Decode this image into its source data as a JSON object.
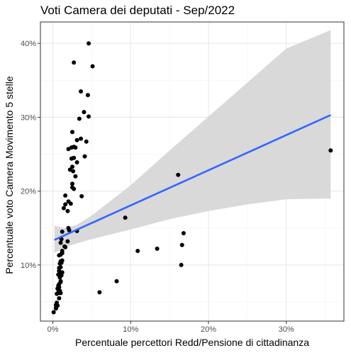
{
  "chart_data": {
    "type": "scatter",
    "title": "Voti Camera dei deputati - Sep/2022",
    "xlabel": "Percentuale percettori Redd/Pensione di cittadinanza",
    "ylabel": "Percentuale voto Camera Movimento 5 stelle",
    "xlim": [
      -1.6,
      37.4
    ],
    "ylim": [
      2.4,
      42.9
    ],
    "x_ticks": [
      0,
      10,
      20,
      30
    ],
    "x_tick_labels": [
      "0%",
      "10%",
      "20%",
      "30%"
    ],
    "y_ticks": [
      10,
      20,
      30,
      40
    ],
    "y_tick_labels": [
      "10%",
      "20%",
      "30%",
      "40%"
    ],
    "grid": true,
    "colors": {
      "points": "#000000",
      "fit_line": "#3366ff",
      "confidence_band": "#d9d9d9",
      "grid_major": "#e8e8e8",
      "grid_minor": "#f3f3f3",
      "panel_border": "#333333"
    },
    "fit_line": {
      "x": [
        0.2,
        35.7
      ],
      "y": [
        13.4,
        30.3
      ]
    },
    "confidence_band": {
      "x": [
        0.2,
        1.5,
        3,
        5,
        10,
        15,
        20,
        25,
        30,
        35.7
      ],
      "upper": [
        15.3,
        15.0,
        15.4,
        16.7,
        20.8,
        25.5,
        30.1,
        34.7,
        39.3,
        41.8
      ],
      "lower": [
        11.6,
        12.4,
        12.9,
        13.5,
        14.8,
        16.2,
        17.3,
        18.2,
        18.9,
        19.0
      ]
    },
    "points": {
      "x": [
        4.6,
        2.7,
        5.1,
        3.6,
        4.5,
        4.0,
        4.6,
        3.4,
        2.5,
        3.1,
        4.3,
        3.6,
        2.7,
        2.9,
        2.4,
        2.0,
        2.4,
        4.1,
        2.7,
        2.5,
        3.1,
        2.6,
        2.2,
        2.9,
        2.5,
        2.5,
        2.7,
        3.7,
        1.6,
        2.3,
        1.6,
        2.0,
        1.4,
        1.9,
        2.0,
        2.1,
        1.2,
        3.1,
        1.9,
        1.1,
        1.0,
        1.5,
        1.6,
        1.2,
        1.2,
        0.8,
        1.0,
        1.2,
        1.0,
        0.9,
        1.1,
        1.0,
        0.8,
        0.8,
        1.2,
        0.9,
        1.1,
        0.9,
        0.7,
        1.0,
        1.0,
        0.8,
        0.7,
        0.8,
        0.6,
        0.9,
        0.7,
        1.0,
        0.8,
        0.5,
        0.8,
        0.5,
        0.4,
        0.6,
        0.4,
        0.4,
        0.1,
        35.7,
        16.1,
        9.3,
        16.8,
        16.6,
        16.5,
        13.4,
        10.9,
        8.2,
        6.0
      ],
      "y": [
        40.0,
        37.4,
        36.9,
        33.5,
        33.0,
        30.7,
        30.1,
        29.8,
        28.0,
        26.9,
        26.7,
        27.1,
        26.0,
        25.9,
        25.9,
        25.7,
        24.4,
        24.7,
        24.5,
        23.3,
        23.9,
        22.7,
        22.9,
        22.0,
        21.0,
        20.5,
        20.3,
        19.3,
        19.4,
        18.3,
        18.2,
        18.6,
        17.7,
        17.3,
        15.0,
        14.7,
        14.5,
        14.6,
        13.2,
        13.5,
        13.0,
        12.5,
        12.4,
        11.9,
        11.6,
        11.3,
        11.4,
        10.6,
        10.5,
        10.2,
        10.3,
        9.7,
        9.6,
        9.2,
        9.0,
        8.7,
        8.6,
        8.3,
        8.7,
        7.8,
        7.7,
        7.4,
        7.2,
        7.0,
        6.8,
        6.5,
        6.3,
        6.2,
        6.2,
        6.1,
        5.5,
        4.9,
        4.6,
        4.5,
        4.2,
        4.1,
        3.6,
        25.5,
        22.2,
        16.4,
        14.3,
        12.7,
        10.0,
        12.2,
        11.9,
        7.8,
        6.3
      ]
    }
  }
}
